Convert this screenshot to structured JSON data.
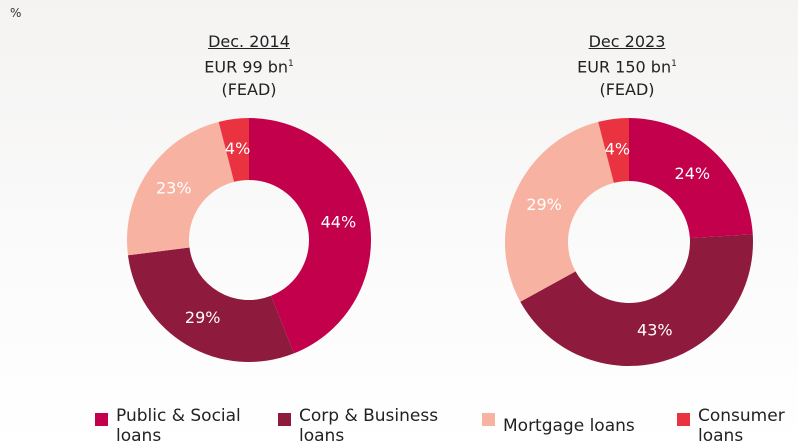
{
  "unit_label": "%",
  "chart_data": [
    {
      "type": "pie",
      "title": "Dec. 2014",
      "subtitle": "EUR 99 bn",
      "footnote_mark": "1",
      "note": "(FEAD)",
      "categories": [
        "Public & Social loans",
        "Corp & Business loans",
        "Mortgage loans",
        "Consumer loans"
      ],
      "values": [
        44,
        29,
        23,
        4
      ],
      "value_labels": [
        "44%",
        "29%",
        "23%",
        "4%"
      ],
      "colors": [
        "#c2004b",
        "#8e1a3d",
        "#f8b2a2",
        "#ea3340"
      ]
    },
    {
      "type": "pie",
      "title": "Dec 2023",
      "subtitle": "EUR 150 bn",
      "footnote_mark": "1",
      "note": "(FEAD)",
      "categories": [
        "Public & Social loans",
        "Corp & Business loans",
        "Mortgage loans",
        "Consumer loans"
      ],
      "values": [
        24,
        43,
        29,
        4
      ],
      "value_labels": [
        "24%",
        "43%",
        "29%",
        "4%"
      ],
      "colors": [
        "#c2004b",
        "#8e1a3d",
        "#f8b2a2",
        "#ea3340"
      ]
    }
  ]
}
